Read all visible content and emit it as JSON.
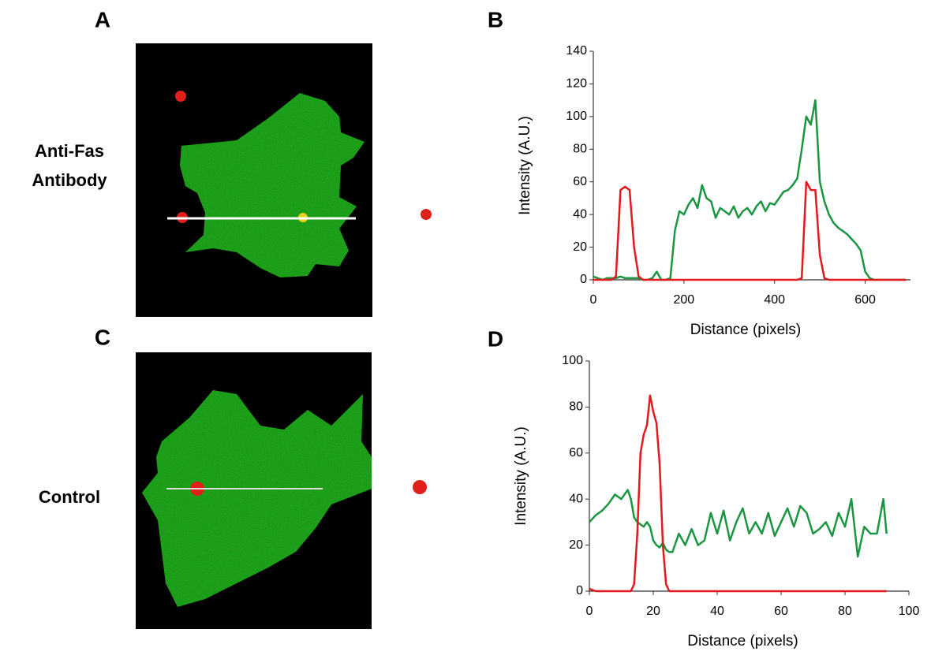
{
  "panel_labels": [
    "A",
    "B",
    "C",
    "D"
  ],
  "row_labels": {
    "treated": [
      "Anti-Fas",
      "Antibody"
    ],
    "control": "Control"
  },
  "chart_data": [
    {
      "type": "line",
      "xlabel": "Distance (pixels)",
      "ylabel": "Intensity (A.U.)",
      "xlim": [
        0,
        700
      ],
      "xticks": [
        0,
        200,
        400,
        600
      ],
      "ylim": [
        0,
        140
      ],
      "yticks": [
        0,
        20,
        40,
        60,
        80,
        100,
        120,
        140
      ],
      "x": [
        0,
        10,
        20,
        30,
        40,
        50,
        60,
        70,
        80,
        90,
        100,
        110,
        120,
        130,
        140,
        150,
        160,
        170,
        180,
        190,
        200,
        210,
        220,
        230,
        240,
        250,
        260,
        270,
        280,
        290,
        300,
        310,
        320,
        330,
        340,
        350,
        360,
        370,
        380,
        390,
        400,
        410,
        420,
        430,
        440,
        450,
        460,
        470,
        480,
        490,
        500,
        510,
        520,
        530,
        540,
        550,
        560,
        570,
        580,
        590,
        600,
        610,
        620,
        630,
        640,
        650,
        660,
        670,
        680,
        690
      ],
      "series": [
        {
          "color": "#1a9641",
          "values": [
            2,
            1,
            0,
            1,
            1,
            1,
            2,
            1,
            1,
            1,
            1,
            0,
            0,
            1,
            5,
            0,
            0,
            1,
            30,
            42,
            40,
            46,
            50,
            44,
            58,
            50,
            48,
            38,
            44,
            42,
            40,
            45,
            38,
            42,
            44,
            40,
            45,
            48,
            42,
            47,
            46,
            50,
            54,
            55,
            58,
            62,
            80,
            100,
            95,
            110,
            60,
            48,
            40,
            35,
            32,
            30,
            28,
            25,
            22,
            18,
            5,
            1,
            0,
            0,
            0,
            0,
            0,
            0,
            0,
            0
          ]
        },
        {
          "color": "#e3191c",
          "values": [
            0,
            0,
            0,
            0,
            0,
            2,
            55,
            57,
            55,
            20,
            2,
            0,
            0,
            0,
            0,
            0,
            0,
            0,
            0,
            0,
            0,
            0,
            0,
            0,
            0,
            0,
            0,
            0,
            0,
            0,
            0,
            0,
            0,
            0,
            0,
            0,
            0,
            0,
            0,
            0,
            0,
            0,
            0,
            0,
            0,
            0,
            1,
            60,
            55,
            55,
            15,
            1,
            0,
            0,
            0,
            0,
            0,
            0,
            0,
            0,
            0,
            0,
            0,
            0,
            0,
            0,
            0,
            0,
            0,
            0
          ]
        }
      ]
    },
    {
      "type": "line",
      "xlabel": "Distance (pixels)",
      "ylabel": "Intensity (A.U.)",
      "xlim": [
        0,
        100
      ],
      "xticks": [
        0,
        20,
        40,
        60,
        80,
        100
      ],
      "ylim": [
        0,
        100
      ],
      "yticks": [
        0,
        20,
        40,
        60,
        80,
        100
      ],
      "x": [
        0,
        2,
        4,
        6,
        8,
        10,
        12,
        13,
        14,
        15,
        16,
        17,
        18,
        19,
        20,
        21,
        22,
        23,
        24,
        25,
        26,
        28,
        30,
        32,
        34,
        36,
        38,
        40,
        42,
        44,
        46,
        48,
        50,
        52,
        54,
        56,
        58,
        60,
        62,
        64,
        66,
        68,
        70,
        72,
        74,
        76,
        78,
        80,
        82,
        84,
        86,
        88,
        90,
        92,
        93
      ],
      "series": [
        {
          "color": "#1a9641",
          "values": [
            30,
            33,
            35,
            38,
            42,
            40,
            44,
            40,
            32,
            30,
            29,
            28,
            30,
            28,
            22,
            20,
            19,
            21,
            18,
            17,
            17,
            25,
            20,
            27,
            20,
            22,
            34,
            25,
            35,
            22,
            30,
            36,
            25,
            30,
            25,
            34,
            24,
            30,
            36,
            28,
            37,
            34,
            25,
            27,
            30,
            24,
            34,
            28,
            40,
            15,
            28,
            25,
            25,
            40,
            25
          ]
        },
        {
          "color": "#e3191c",
          "values": [
            1,
            0,
            0,
            0,
            0,
            0,
            0,
            0,
            3,
            25,
            60,
            68,
            72,
            85,
            78,
            73,
            55,
            20,
            3,
            0,
            0,
            0,
            0,
            0,
            0,
            0,
            0,
            0,
            0,
            0,
            0,
            0,
            0,
            0,
            0,
            0,
            0,
            0,
            0,
            0,
            0,
            0,
            0,
            0,
            0,
            0,
            0,
            0,
            0,
            0,
            0,
            0,
            0,
            0,
            0
          ]
        }
      ]
    }
  ]
}
